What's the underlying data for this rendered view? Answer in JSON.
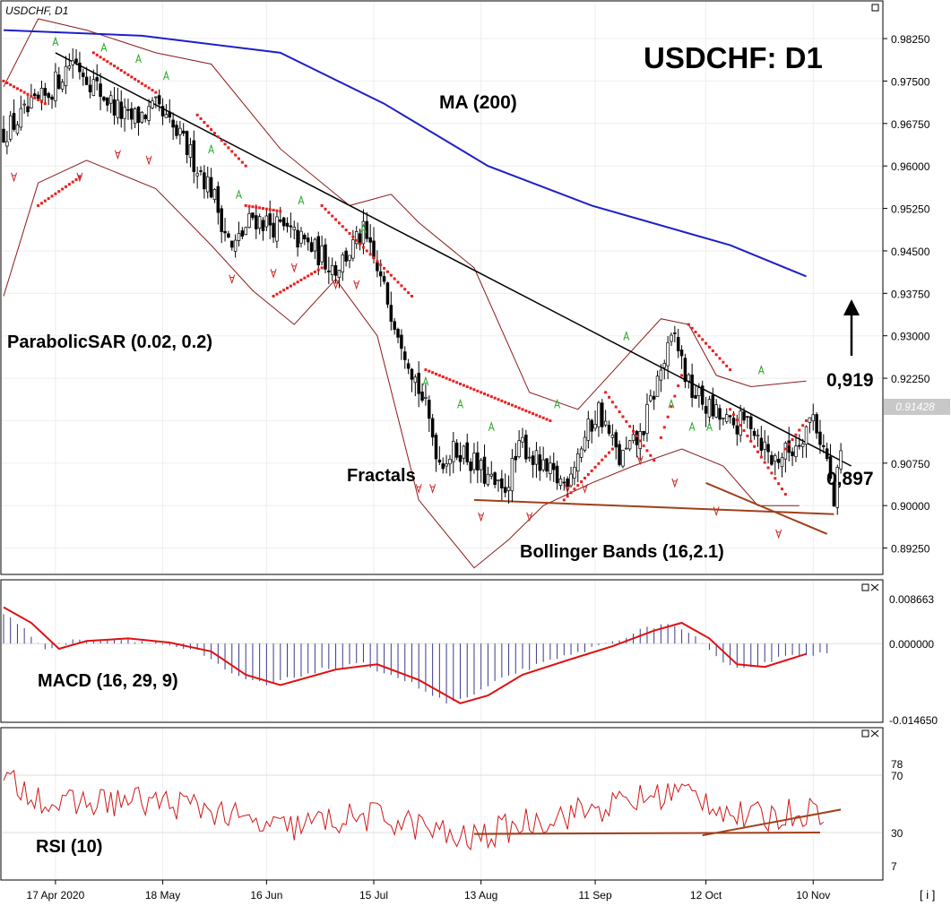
{
  "header": {
    "symbol_tf": "USDCHF, D1",
    "big_title": "USDCHF: D1"
  },
  "indicators": {
    "ma": "MA (200)",
    "sar": "ParabolicSAR (0.02, 0.2)",
    "fractals": "Fractals",
    "bollinger": "Bollinger Bands (16,2.1)",
    "macd": "MACD (16, 29, 9)",
    "rsi": "RSI (10)"
  },
  "annotations": {
    "resistance": "0,919",
    "support": "0,897",
    "current_price": "0.91428"
  },
  "price_axis": [
    "0.98250",
    "0.97500",
    "0.96750",
    "0.96000",
    "0.95250",
    "0.94500",
    "0.93750",
    "0.93000",
    "0.92250",
    "0.91500",
    "0.90750",
    "0.90000",
    "0.89250"
  ],
  "macd_axis": [
    "0.008663",
    "0.000000",
    "-0.014650"
  ],
  "rsi_axis": [
    "78",
    "70",
    "30",
    "7"
  ],
  "date_labels": [
    "17 Apr 2020",
    "18 May",
    "16 Jun",
    "15 Jul",
    "13 Aug",
    "11 Sep",
    "12 Oct",
    "10 Nov"
  ],
  "footer_icon": "[ i ]",
  "colors": {
    "bull": "#ffffff",
    "bear": "#000000",
    "ma": "#1f1fc8",
    "sar": "#e8201e",
    "bands": "#8b1a1a",
    "trend": "#000000",
    "support": "#a0401a",
    "macd_signal": "#e01010",
    "macd_hist": "#3a3a8a",
    "rsi": "#d01818",
    "fractal_up": "#22aa22",
    "fractal_down": "#cc2222"
  },
  "chart_data": {
    "type": "candlestick",
    "symbol": "USDCHF",
    "timeframe": "D1",
    "x": [
      "17 Apr 2020",
      "18 May",
      "16 Jun",
      "15 Jul",
      "13 Aug",
      "11 Sep",
      "12 Oct",
      "10 Nov"
    ],
    "ylim": [
      0.888,
      0.989
    ],
    "close_anchors": [
      [
        0,
        0.966
      ],
      [
        12,
        0.972
      ],
      [
        20,
        0.979
      ],
      [
        28,
        0.973
      ],
      [
        36,
        0.968
      ],
      [
        44,
        0.97
      ],
      [
        52,
        0.964
      ],
      [
        60,
        0.956
      ],
      [
        66,
        0.945
      ],
      [
        72,
        0.951
      ],
      [
        80,
        0.949
      ],
      [
        88,
        0.946
      ],
      [
        96,
        0.942
      ],
      [
        104,
        0.948
      ],
      [
        110,
        0.938
      ],
      [
        116,
        0.928
      ],
      [
        122,
        0.917
      ],
      [
        126,
        0.908
      ],
      [
        132,
        0.91
      ],
      [
        138,
        0.906
      ],
      [
        144,
        0.902
      ],
      [
        150,
        0.911
      ],
      [
        156,
        0.906
      ],
      [
        162,
        0.904
      ],
      [
        168,
        0.912
      ],
      [
        172,
        0.917
      ],
      [
        178,
        0.908
      ],
      [
        184,
        0.912
      ],
      [
        190,
        0.924
      ],
      [
        194,
        0.93
      ],
      [
        198,
        0.921
      ],
      [
        204,
        0.917
      ],
      [
        210,
        0.914
      ],
      [
        216,
        0.915
      ],
      [
        222,
        0.908
      ],
      [
        228,
        0.91
      ],
      [
        234,
        0.916
      ],
      [
        238,
        0.908
      ],
      [
        240,
        0.9
      ],
      [
        243,
        0.914
      ]
    ],
    "ma200": [
      [
        0,
        0.984
      ],
      [
        40,
        0.983
      ],
      [
        80,
        0.98
      ],
      [
        110,
        0.971
      ],
      [
        140,
        0.96
      ],
      [
        170,
        0.953
      ],
      [
        190,
        0.9495
      ],
      [
        210,
        0.946
      ],
      [
        232,
        0.9405
      ]
    ],
    "sar_dots": [
      [
        [
          0,
          0.975
        ],
        [
          12,
          0.971
        ]
      ],
      [
        [
          10,
          0.953
        ],
        [
          22,
          0.958
        ]
      ],
      [
        [
          26,
          0.98
        ],
        [
          44,
          0.973
        ]
      ],
      [
        [
          56,
          0.969
        ],
        [
          70,
          0.96
        ]
      ],
      [
        [
          70,
          0.953
        ],
        [
          80,
          0.952
        ]
      ],
      [
        [
          78,
          0.937
        ],
        [
          92,
          0.942
        ]
      ],
      [
        [
          92,
          0.953
        ],
        [
          118,
          0.937
        ]
      ],
      [
        [
          122,
          0.924
        ],
        [
          158,
          0.915
        ]
      ],
      [
        [
          162,
          0.901
        ],
        [
          176,
          0.91
        ]
      ],
      [
        [
          174,
          0.92
        ],
        [
          188,
          0.908
        ]
      ],
      [
        [
          190,
          0.912
        ],
        [
          196,
          0.923
        ]
      ],
      [
        [
          198,
          0.932
        ],
        [
          210,
          0.924
        ]
      ],
      [
        [
          210,
          0.917
        ],
        [
          226,
          0.902
        ]
      ],
      [
        [
          226,
          0.91
        ],
        [
          232,
          0.915
        ]
      ]
    ],
    "bollinger_upper": [
      [
        0,
        0.974
      ],
      [
        10,
        0.986
      ],
      [
        24,
        0.984
      ],
      [
        44,
        0.98
      ],
      [
        60,
        0.978
      ],
      [
        80,
        0.963
      ],
      [
        100,
        0.953
      ],
      [
        112,
        0.955
      ],
      [
        120,
        0.95
      ],
      [
        136,
        0.942
      ],
      [
        152,
        0.92
      ],
      [
        166,
        0.917
      ],
      [
        178,
        0.925
      ],
      [
        190,
        0.933
      ],
      [
        198,
        0.932
      ],
      [
        206,
        0.923
      ],
      [
        216,
        0.921
      ],
      [
        232,
        0.922
      ]
    ],
    "bollinger_lower": [
      [
        0,
        0.937
      ],
      [
        10,
        0.957
      ],
      [
        24,
        0.961
      ],
      [
        44,
        0.956
      ],
      [
        60,
        0.946
      ],
      [
        72,
        0.938
      ],
      [
        84,
        0.932
      ],
      [
        96,
        0.94
      ],
      [
        108,
        0.93
      ],
      [
        120,
        0.901
      ],
      [
        136,
        0.889
      ],
      [
        146,
        0.894
      ],
      [
        156,
        0.9
      ],
      [
        170,
        0.904
      ],
      [
        182,
        0.907
      ],
      [
        196,
        0.91
      ],
      [
        208,
        0.907
      ],
      [
        218,
        0.9
      ],
      [
        230,
        0.9
      ]
    ],
    "trendline": [
      [
        15,
        0.98
      ],
      [
        245,
        0.907
      ]
    ],
    "support_lines": [
      [
        [
          136,
          0.901
        ],
        [
          240,
          0.8985
        ]
      ],
      [
        [
          203,
          0.904
        ],
        [
          238,
          0.895
        ]
      ]
    ],
    "fractals_up": [
      [
        15,
        0.982
      ],
      [
        29,
        0.981
      ],
      [
        39,
        0.979
      ],
      [
        47,
        0.976
      ],
      [
        60,
        0.963
      ],
      [
        68,
        0.955
      ],
      [
        86,
        0.954
      ],
      [
        104,
        0.949
      ],
      [
        122,
        0.922
      ],
      [
        132,
        0.918
      ],
      [
        141,
        0.914
      ],
      [
        160,
        0.918
      ],
      [
        180,
        0.93
      ],
      [
        193,
        0.918
      ],
      [
        199,
        0.914
      ],
      [
        204,
        0.914
      ],
      [
        219,
        0.924
      ]
    ],
    "fractals_down": [
      [
        3,
        0.958
      ],
      [
        22,
        0.958
      ],
      [
        33,
        0.962
      ],
      [
        42,
        0.961
      ],
      [
        66,
        0.94
      ],
      [
        78,
        0.941
      ],
      [
        84,
        0.942
      ],
      [
        96,
        0.939
      ],
      [
        102,
        0.939
      ],
      [
        120,
        0.903
      ],
      [
        124,
        0.903
      ],
      [
        138,
        0.898
      ],
      [
        152,
        0.898
      ],
      [
        163,
        0.903
      ],
      [
        168,
        0.903
      ],
      [
        184,
        0.908
      ],
      [
        194,
        0.904
      ],
      [
        206,
        0.899
      ],
      [
        224,
        0.895
      ]
    ],
    "macd": {
      "range": [
        -0.01465,
        0.008663
      ],
      "signal": [
        [
          0,
          0.007
        ],
        [
          8,
          0.004
        ],
        [
          16,
          -0.001
        ],
        [
          24,
          0.0005
        ],
        [
          36,
          0.001
        ],
        [
          48,
          0.0002
        ],
        [
          60,
          -0.0015
        ],
        [
          70,
          -0.006
        ],
        [
          80,
          -0.008
        ],
        [
          96,
          -0.005
        ],
        [
          108,
          -0.004
        ],
        [
          120,
          -0.007
        ],
        [
          132,
          -0.0115
        ],
        [
          140,
          -0.01
        ],
        [
          150,
          -0.006
        ],
        [
          164,
          -0.003
        ],
        [
          176,
          -0.0005
        ],
        [
          188,
          0.0025
        ],
        [
          196,
          0.004
        ],
        [
          204,
          0.001
        ],
        [
          212,
          -0.004
        ],
        [
          220,
          -0.0045
        ],
        [
          232,
          -0.002
        ]
      ]
    },
    "rsi": {
      "range": [
        0,
        100
      ],
      "levels": [
        30,
        70
      ],
      "trendlines": [
        [
          [
            136,
            29
          ],
          [
            236,
            30
          ]
        ],
        [
          [
            202,
            28
          ],
          [
            242,
            46
          ]
        ]
      ]
    }
  }
}
